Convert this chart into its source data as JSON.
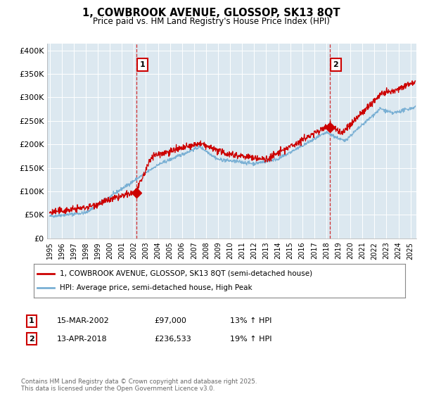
{
  "title": "1, COWBROOK AVENUE, GLOSSOP, SK13 8QT",
  "subtitle": "Price paid vs. HM Land Registry's House Price Index (HPI)",
  "ylabel_ticks": [
    "£0",
    "£50K",
    "£100K",
    "£150K",
    "£200K",
    "£250K",
    "£300K",
    "£350K",
    "£400K"
  ],
  "ytick_values": [
    0,
    50000,
    100000,
    150000,
    200000,
    250000,
    300000,
    350000,
    400000
  ],
  "ylim": [
    0,
    415000
  ],
  "xlim_start": 1994.8,
  "xlim_end": 2025.5,
  "red_line_color": "#cc0000",
  "blue_line_color": "#7ab0d4",
  "dashed_line_color": "#cc0000",
  "marker1_x": 2002.21,
  "marker1_y": 97000,
  "marker2_x": 2018.29,
  "marker2_y": 236533,
  "marker1_label": "1",
  "marker2_label": "2",
  "legend_line1": "1, COWBROOK AVENUE, GLOSSOP, SK13 8QT (semi-detached house)",
  "legend_line2": "HPI: Average price, semi-detached house, High Peak",
  "table_row1": [
    "1",
    "15-MAR-2002",
    "£97,000",
    "13% ↑ HPI"
  ],
  "table_row2": [
    "2",
    "13-APR-2018",
    "£236,533",
    "19% ↑ HPI"
  ],
  "footnote": "Contains HM Land Registry data © Crown copyright and database right 2025.\nThis data is licensed under the Open Government Licence v3.0.",
  "background_color": "#ffffff",
  "plot_bg_color": "#dce8f0"
}
